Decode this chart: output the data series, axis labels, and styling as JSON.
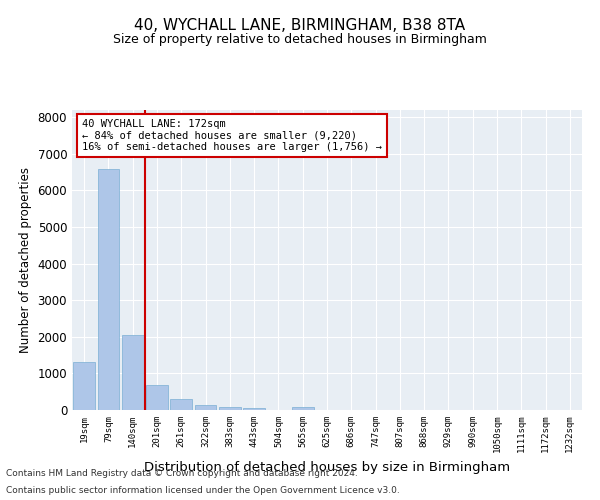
{
  "title": "40, WYCHALL LANE, BIRMINGHAM, B38 8TA",
  "subtitle": "Size of property relative to detached houses in Birmingham",
  "xlabel": "Distribution of detached houses by size in Birmingham",
  "ylabel": "Number of detached properties",
  "footnote1": "Contains HM Land Registry data © Crown copyright and database right 2024.",
  "footnote2": "Contains public sector information licensed under the Open Government Licence v3.0.",
  "annotation_line1": "40 WYCHALL LANE: 172sqm",
  "annotation_line2": "← 84% of detached houses are smaller (9,220)",
  "annotation_line3": "16% of semi-detached houses are larger (1,756) →",
  "bar_color": "#aec6e8",
  "bar_edge_color": "#7aafd4",
  "vline_color": "#cc0000",
  "bg_color": "#e8eef4",
  "categories": [
    "19sqm",
    "79sqm",
    "140sqm",
    "201sqm",
    "261sqm",
    "322sqm",
    "383sqm",
    "443sqm",
    "504sqm",
    "565sqm",
    "625sqm",
    "686sqm",
    "747sqm",
    "807sqm",
    "868sqm",
    "929sqm",
    "990sqm",
    "1050sqm",
    "1111sqm",
    "1172sqm",
    "1232sqm"
  ],
  "values": [
    1300,
    6580,
    2060,
    680,
    290,
    130,
    90,
    65,
    0,
    85,
    0,
    0,
    0,
    0,
    0,
    0,
    0,
    0,
    0,
    0,
    0
  ],
  "ylim": [
    0,
    8200
  ],
  "yticks": [
    0,
    1000,
    2000,
    3000,
    4000,
    5000,
    6000,
    7000,
    8000
  ],
  "vline_x_index": 2.5,
  "grid_color": "#ffffff"
}
